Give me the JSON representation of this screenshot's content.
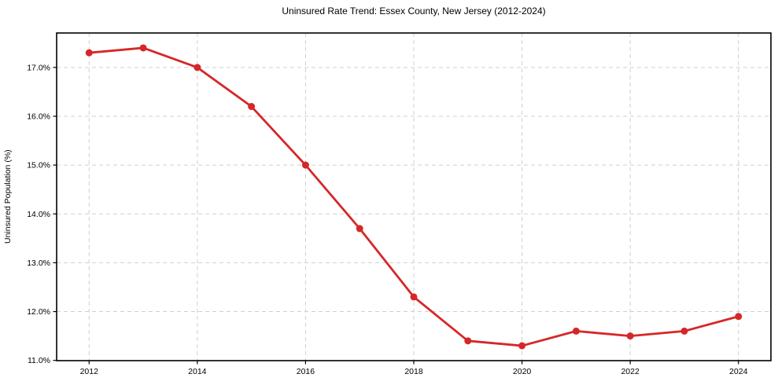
{
  "chart_data": {
    "type": "line",
    "title": "Uninsured Rate Trend: Essex County, New Jersey (2012-2024)",
    "xlabel": "",
    "ylabel": "Uninsured Population (%)",
    "x": [
      2012,
      2013,
      2014,
      2015,
      2016,
      2017,
      2018,
      2019,
      2020,
      2021,
      2022,
      2023,
      2024
    ],
    "series": [
      {
        "name": "Uninsured rate",
        "values": [
          17.3,
          17.4,
          17.0,
          16.2,
          15.0,
          13.7,
          12.3,
          11.4,
          11.3,
          11.6,
          11.5,
          11.6,
          11.9
        ]
      }
    ],
    "xticks": [
      2012,
      2014,
      2016,
      2018,
      2020,
      2022,
      2024
    ],
    "xtick_labels": [
      "2012",
      "2014",
      "2016",
      "2018",
      "2020",
      "2022",
      "2024"
    ],
    "yticks": [
      11,
      12,
      13,
      14,
      15,
      16,
      17
    ],
    "ytick_labels": [
      "11.0%",
      "12.0%",
      "13.0%",
      "14.0%",
      "15.0%",
      "16.0%",
      "17.0%"
    ],
    "xlim": [
      2011.4,
      2024.6
    ],
    "ylim": [
      10.995,
      17.705
    ],
    "grid": true,
    "grid_style": "dashed",
    "legend": "none",
    "line_color": "#d62728",
    "marker": "circle",
    "marker_radius": 4.5,
    "line_width": 2.8,
    "grid_color": "#cfcfcf",
    "axis_color": "#000000",
    "background": "#ffffff"
  }
}
